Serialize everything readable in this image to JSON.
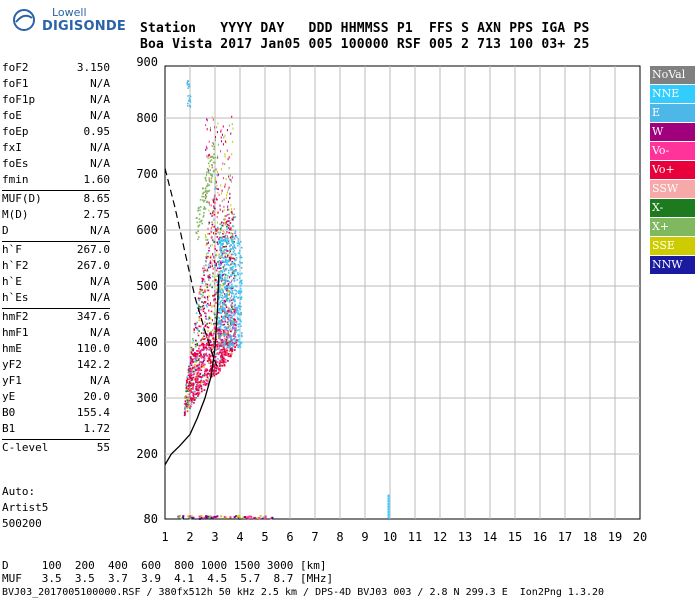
{
  "logo": {
    "line1": "Lowell",
    "line2": "DIGISONDE"
  },
  "header": {
    "line1": "Station   YYYY DAY   DDD HHMMSS P1  FFS S AXN PPS IGA PS",
    "line2": "Boa Vista 2017 Jan05 005 100000 RSF 005 2 713 100 03+ 25"
  },
  "params": [
    {
      "label": "foF2",
      "value": "3.150"
    },
    {
      "label": "foF1",
      "value": "N/A"
    },
    {
      "label": "foF1p",
      "value": "N/A"
    },
    {
      "label": "foE",
      "value": "N/A"
    },
    {
      "label": "foEp",
      "value": "0.95"
    },
    {
      "label": "fxI",
      "value": "N/A"
    },
    {
      "label": "foEs",
      "value": "N/A"
    },
    {
      "label": "fmin",
      "value": "1.60"
    },
    {
      "label": "MUF(D)",
      "value": "8.65"
    },
    {
      "label": "M(D)",
      "value": "2.75"
    },
    {
      "label": "D",
      "value": "N/A"
    },
    {
      "label": "h`F",
      "value": "267.0"
    },
    {
      "label": "h`F2",
      "value": "267.0"
    },
    {
      "label": "h`E",
      "value": "N/A"
    },
    {
      "label": "h`Es",
      "value": "N/A"
    },
    {
      "label": "hmF2",
      "value": "347.6"
    },
    {
      "label": "hmF1",
      "value": "N/A"
    },
    {
      "label": "hmE",
      "value": "110.0"
    },
    {
      "label": "yF2",
      "value": "142.2"
    },
    {
      "label": "yF1",
      "value": "N/A"
    },
    {
      "label": "yE",
      "value": "20.0"
    },
    {
      "label": "B0",
      "value": "155.4"
    },
    {
      "label": "B1",
      "value": "1.72"
    },
    {
      "label": "C-level",
      "value": "55"
    }
  ],
  "auto": {
    "line1": "Auto:",
    "line2": "Artist5",
    "line3": "500200"
  },
  "legend": [
    {
      "label": "NoVal",
      "color": "#808080"
    },
    {
      "label": "NNE",
      "color": "#33ccff"
    },
    {
      "label": "E",
      "color": "#4db8e8"
    },
    {
      "label": "W",
      "color": "#a0007c"
    },
    {
      "label": "Vo-",
      "color": "#ff3399"
    },
    {
      "label": "Vo+",
      "color": "#e8003c"
    },
    {
      "label": "SSW",
      "color": "#f7a8a8"
    },
    {
      "label": "X-",
      "color": "#1e7a1e"
    },
    {
      "label": "X+",
      "color": "#80b860"
    },
    {
      "label": "SSE",
      "color": "#cccc00"
    },
    {
      "label": "NNW",
      "color": "#1a1aa0"
    }
  ],
  "axes": {
    "x_ticks": [
      "1",
      "2",
      "3",
      "4",
      "5",
      "6",
      "7",
      "8",
      "9",
      "10",
      "11",
      "12",
      "13",
      "14",
      "15",
      "16",
      "17",
      "18",
      "19",
      "20"
    ],
    "y_ticks": [
      "80",
      "200",
      "300",
      "400",
      "500",
      "600",
      "700",
      "800",
      "900"
    ]
  },
  "bottom": {
    "line1": "D     100  200  400  600  800 1000 1500 3000 [km]",
    "line2": "MUF   3.5  3.5  3.7  3.9  4.1  4.5  5.7  8.7 [MHz]",
    "line3": "BVJ03_2017005100000.RSF / 380fx512h 50 kHz 2.5 km / DPS-4D BVJ03 003 / 2.8 N 299.3 E  Ion2Png 1.3.20"
  }
}
